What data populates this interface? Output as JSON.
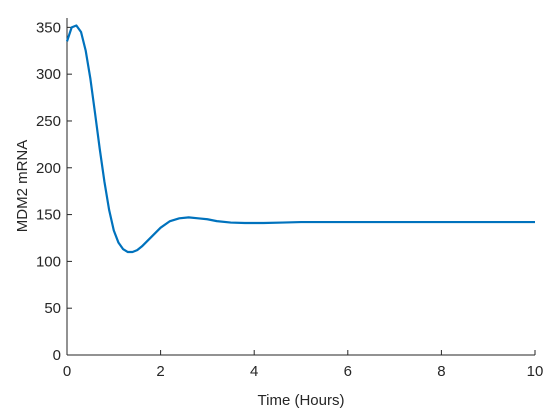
{
  "chart_data": {
    "type": "line",
    "x_label": "Time (Hours)",
    "y_label": "MDM2 mRNA",
    "x": [
      0,
      0.1,
      0.2,
      0.3,
      0.4,
      0.5,
      0.6,
      0.7,
      0.8,
      0.9,
      1.0,
      1.1,
      1.2,
      1.3,
      1.4,
      1.5,
      1.6,
      1.8,
      2.0,
      2.2,
      2.4,
      2.6,
      2.8,
      3.0,
      3.2,
      3.5,
      3.8,
      4.2,
      4.6,
      5,
      6,
      7,
      8,
      9,
      10
    ],
    "series": [
      {
        "color": "#0072bd",
        "values": [
          335,
          350,
          352,
          345,
          325,
          295,
          258,
          220,
          185,
          155,
          133,
          120,
          113,
          110,
          110,
          112,
          116,
          126,
          136,
          143,
          146,
          147,
          146,
          145,
          143,
          141.5,
          141,
          141,
          141.5,
          142,
          142,
          142,
          142,
          142,
          142
        ]
      }
    ],
    "xlim": [
      0,
      10
    ],
    "xticks": [
      0,
      2,
      4,
      6,
      8,
      10
    ],
    "ylim": [
      0,
      360
    ],
    "yticks": [
      0,
      50,
      100,
      150,
      200,
      250,
      300,
      350
    ]
  }
}
